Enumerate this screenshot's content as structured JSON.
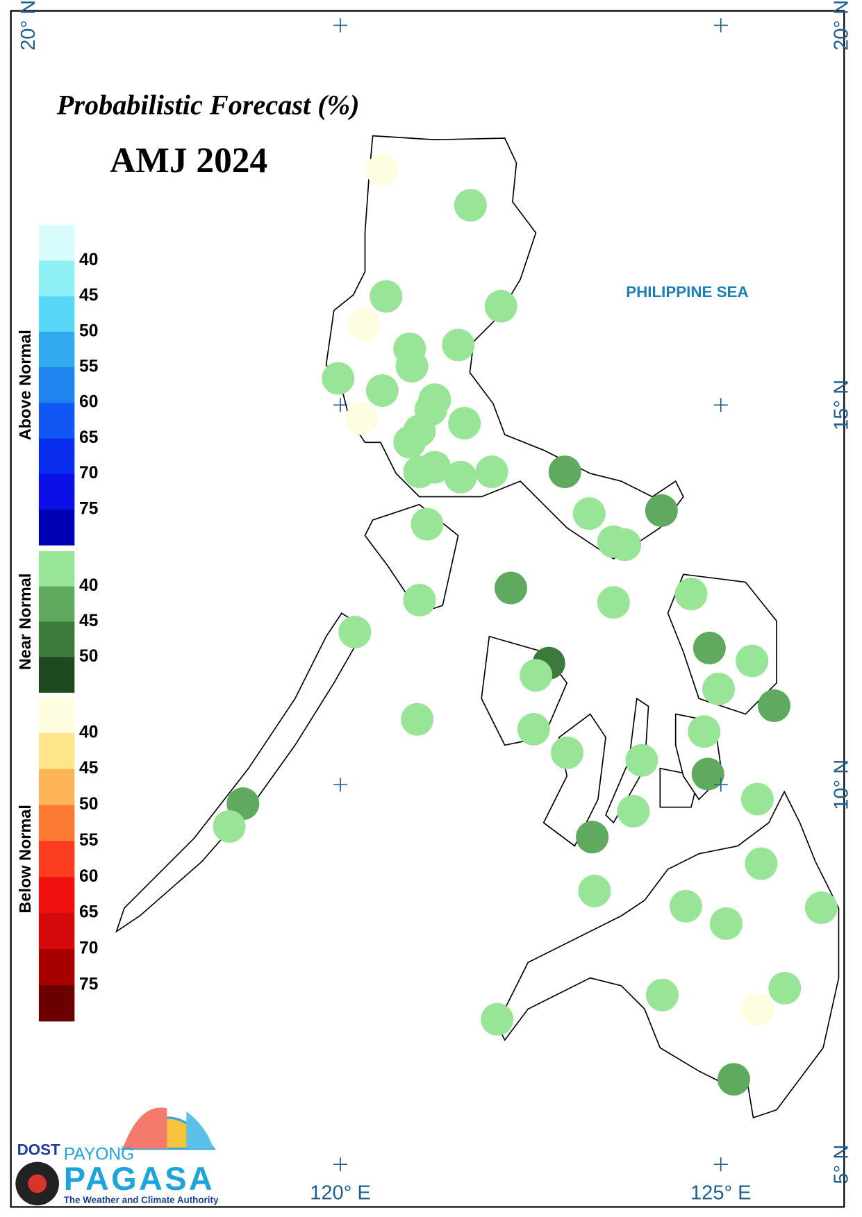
{
  "title": "Probabilistic Forecast (%)",
  "subtitle": "AMJ 2024",
  "sea_label": "PHILIPPINE SEA",
  "logo": {
    "agency": "DOST",
    "brand_top": "PAYONG",
    "brand": "PAGASA",
    "tagline": "The Weather and Climate Authority"
  },
  "legend": {
    "groups": [
      {
        "title": "Above Normal",
        "levels": [
          40,
          45,
          50,
          55,
          60,
          65,
          70,
          75
        ],
        "colors": [
          "#d8fcfc",
          "#8ff0f5",
          "#57d6f5",
          "#32aaf0",
          "#1e84ee",
          "#1157f5",
          "#0a2ef0",
          "#0a0fe6",
          "#0000b4"
        ]
      },
      {
        "title": "Near Normal",
        "levels": [
          40,
          45,
          50
        ],
        "colors": [
          "#98e598",
          "#5faa5f",
          "#3b7a3b",
          "#1f4a1f"
        ]
      },
      {
        "title": "Below Normal",
        "levels": [
          40,
          45,
          50,
          55,
          60,
          65,
          70,
          75
        ],
        "colors": [
          "#fffde0",
          "#fee48a",
          "#fdb456",
          "#fd7a35",
          "#fb3c1e",
          "#f01010",
          "#d40a0a",
          "#a80000",
          "#6b0000"
        ]
      }
    ]
  },
  "map": {
    "xlim": [
      115.67,
      126.62
    ],
    "ylim": [
      4.44,
      20.19
    ],
    "xticks": [
      {
        "value": 120,
        "label": "120° E"
      },
      {
        "value": 125,
        "label": "125° E"
      }
    ],
    "yticks": [
      {
        "value": 20,
        "label": "20° N"
      },
      {
        "value": 15,
        "label": "15° N"
      },
      {
        "value": 10,
        "label": "10° N"
      },
      {
        "value": 5,
        "label": "5° N"
      }
    ],
    "stations": {
      "lon": [
        120.55,
        121.71,
        120.6,
        122.11,
        120.31,
        120.91,
        121.55,
        120.94,
        119.97,
        120.55,
        121.24,
        121.19,
        120.28,
        121.63,
        121.04,
        120.91,
        121.04,
        121.24,
        121.58,
        121.99,
        122.95,
        121.14,
        123.27,
        124.22,
        123.59,
        123.74,
        122.24,
        121.04,
        123.59,
        124.61,
        120.19,
        122.74,
        124.85,
        125.41,
        122.57,
        124.97,
        125.7,
        121.01,
        122.54,
        124.78,
        122.98,
        123.96,
        124.83,
        125.48,
        118.72,
        118.54,
        123.85,
        123.31,
        125.53,
        123.34,
        124.54,
        126.32,
        125.07,
        124.23,
        125.48,
        125.84,
        122.06,
        125.17
      ],
      "lat": [
        18.09,
        17.63,
        16.43,
        16.3,
        16.06,
        15.74,
        15.79,
        15.51,
        15.35,
        15.19,
        15.07,
        14.94,
        14.82,
        14.76,
        14.66,
        14.51,
        14.12,
        14.18,
        14.05,
        14.12,
        14.12,
        13.43,
        13.57,
        13.61,
        13.2,
        13.16,
        12.59,
        12.43,
        12.4,
        12.51,
        12.01,
        11.6,
        11.8,
        11.63,
        11.44,
        11.26,
        11.04,
        10.86,
        10.73,
        10.7,
        10.42,
        10.32,
        10.14,
        9.81,
        9.75,
        9.45,
        9.65,
        9.31,
        8.96,
        8.6,
        8.4,
        8.38,
        8.17,
        7.23,
        7.04,
        7.32,
        6.91,
        6.12
      ],
      "colors": [
        "#fffde0",
        "#98e598",
        "#98e598",
        "#98e598",
        "#fffde0",
        "#98e598",
        "#98e598",
        "#98e598",
        "#98e598",
        "#98e598",
        "#98e598",
        "#98e598",
        "#fffde0",
        "#98e598",
        "#98e598",
        "#98e598",
        "#98e598",
        "#98e598",
        "#98e598",
        "#98e598",
        "#5faa5f",
        "#98e598",
        "#98e598",
        "#5faa5f",
        "#98e598",
        "#98e598",
        "#5faa5f",
        "#98e598",
        "#98e598",
        "#98e598",
        "#98e598",
        "#3b7a3b",
        "#5faa5f",
        "#98e598",
        "#98e598",
        "#98e598",
        "#5faa5f",
        "#98e598",
        "#98e598",
        "#98e598",
        "#98e598",
        "#98e598",
        "#5faa5f",
        "#98e598",
        "#5faa5f",
        "#98e598",
        "#98e598",
        "#5faa5f",
        "#98e598",
        "#98e598",
        "#98e598",
        "#98e598",
        "#98e598",
        "#98e598",
        "#fffde0",
        "#98e598",
        "#98e598",
        "#5faa5f"
      ]
    }
  }
}
